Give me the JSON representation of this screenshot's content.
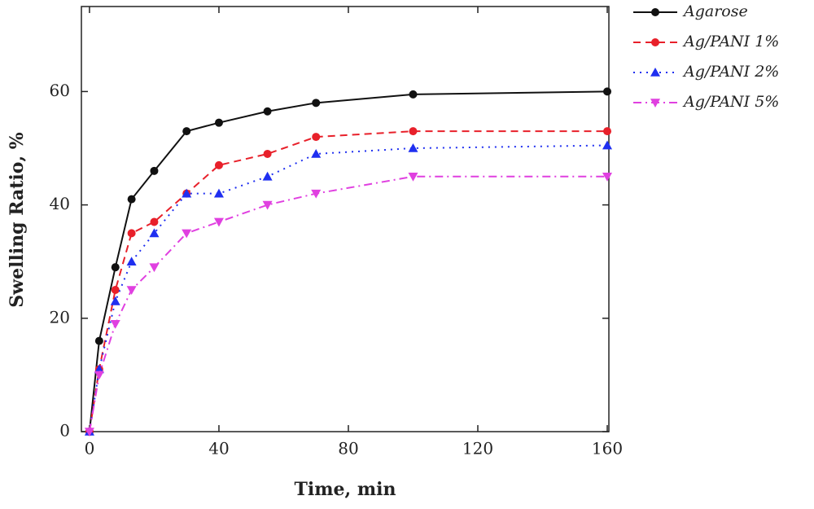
{
  "chart_data": {
    "type": "line",
    "xlabel": "Time, min",
    "ylabel": "Swelling Ratio, %",
    "x": [
      0,
      3,
      8,
      13,
      20,
      30,
      40,
      55,
      70,
      100,
      160
    ],
    "series": [
      {
        "name": "Agarose",
        "color": "#111111",
        "dash": "solid",
        "marker": "circle",
        "values": [
          0,
          16,
          29,
          41,
          46,
          53,
          54.5,
          56.5,
          58,
          59.5,
          60
        ]
      },
      {
        "name": "Ag/PANI 1%",
        "color": "#e8202a",
        "dash": "dashed",
        "marker": "circle",
        "values": [
          0,
          11,
          25,
          35,
          37,
          42,
          47,
          49,
          52,
          53,
          53
        ]
      },
      {
        "name": "Ag/PANI 2%",
        "color": "#1f2ff0",
        "dash": "dotted",
        "marker": "triangle-up",
        "values": [
          0,
          11,
          23,
          30,
          35,
          42,
          42,
          45,
          49,
          50,
          50.5
        ]
      },
      {
        "name": "Ag/PANI 5%",
        "color": "#e040e0",
        "dash": "dashdot",
        "marker": "triangle-down",
        "values": [
          0,
          10,
          19,
          25,
          29,
          35,
          37,
          40,
          42,
          45,
          45
        ]
      }
    ],
    "xlim": [
      -2.5,
      160.5
    ],
    "ylim": [
      0,
      75
    ],
    "xticks": [
      0,
      40,
      80,
      120,
      160
    ],
    "yticks": [
      0,
      20,
      40,
      60
    ],
    "grid": false,
    "legend": "outside-top-right"
  }
}
